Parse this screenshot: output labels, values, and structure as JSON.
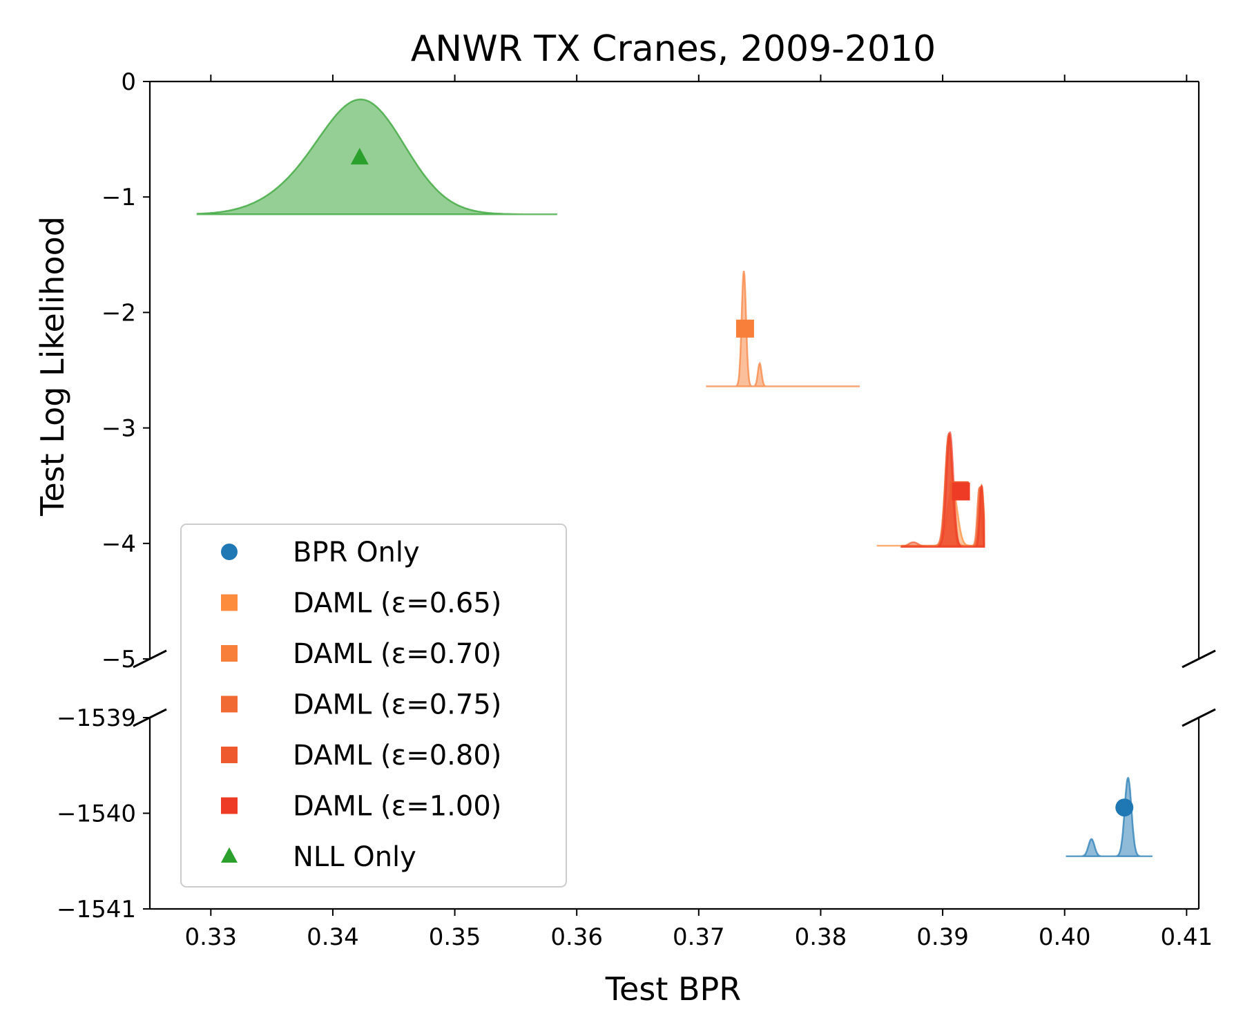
{
  "chart_data": {
    "type": "scatter",
    "title": "ANWR TX Cranes, 2009-2010",
    "xlabel": "Test BPR",
    "ylabel": "Test Log Likelihood",
    "xlim": [
      0.325,
      0.411
    ],
    "x_ticks": [
      {
        "value": 0.33,
        "label": "0.33"
      },
      {
        "value": 0.34,
        "label": "0.34"
      },
      {
        "value": 0.35,
        "label": "0.35"
      },
      {
        "value": 0.36,
        "label": "0.36"
      },
      {
        "value": 0.37,
        "label": "0.37"
      },
      {
        "value": 0.38,
        "label": "0.38"
      },
      {
        "value": 0.39,
        "label": "0.39"
      },
      {
        "value": 0.4,
        "label": "0.40"
      },
      {
        "value": 0.41,
        "label": "0.41"
      }
    ],
    "broken_y_axis": {
      "upper_ylim": [
        -5,
        0
      ],
      "upper_ticks": [
        {
          "value": 0,
          "label": "0"
        },
        {
          "value": -1,
          "label": "−1"
        },
        {
          "value": -2,
          "label": "−2"
        },
        {
          "value": -3,
          "label": "−3"
        },
        {
          "value": -4,
          "label": "−4"
        },
        {
          "value": -5,
          "label": "−5"
        }
      ],
      "lower_ylim": [
        -1541,
        -1539
      ],
      "lower_ticks": [
        {
          "value": -1539,
          "label": "−1539"
        },
        {
          "value": -1540,
          "label": "−1540"
        },
        {
          "value": -1541,
          "label": "−1541"
        }
      ]
    },
    "series": [
      {
        "name": "BPR Only",
        "marker": "circle",
        "color": "#1f77b4",
        "x": 0.4049,
        "y": -1539.94,
        "panel": "lower",
        "density": {
          "baseline": -1540.45,
          "peaks": [
            {
              "x": 0.4052,
              "height": 0.82,
              "width": 0.00028
            },
            {
              "x": 0.4022,
              "height": 0.18,
              "width": 0.00025
            }
          ],
          "xmin": 0.4001,
          "xmax": 0.4072
        }
      },
      {
        "name": "DAML (ε=0.65)",
        "marker": "square",
        "color": "#fd8d3c",
        "x": null,
        "y": null,
        "panel": "upper",
        "density": {
          "baseline": -4.02,
          "peaks": [
            {
              "x": 0.3908,
              "height": 0.5,
              "width": 0.0004
            },
            {
              "x": 0.3932,
              "height": 0.52,
              "width": 0.00018
            }
          ],
          "xmin": 0.3846,
          "xmax": 0.3934
        }
      },
      {
        "name": "DAML (ε=0.70)",
        "marker": "square",
        "color": "#f87f3a",
        "x": 0.3738,
        "y": -2.14,
        "panel": "upper",
        "density": {
          "baseline": -2.64,
          "peaks": [
            {
              "x": 0.3737,
              "height": 1.0,
              "width": 0.00018
            },
            {
              "x": 0.375,
              "height": 0.2,
              "width": 0.00015
            }
          ],
          "xmin": 0.3706,
          "xmax": 0.3832
        }
      },
      {
        "name": "DAML (ε=0.75)",
        "marker": "square",
        "color": "#f26a33",
        "x": 0.3914,
        "y": -3.54,
        "panel": "upper",
        "density": {
          "baseline": -4.02,
          "peaks": [
            {
              "x": 0.3905,
              "height": 0.95,
              "width": 0.0003
            },
            {
              "x": 0.393,
              "height": 0.5,
              "width": 0.00016
            }
          ],
          "xmin": 0.3866,
          "xmax": 0.3934
        }
      },
      {
        "name": "DAML (ε=0.80)",
        "marker": "square",
        "color": "#ee5a2e",
        "x": 0.3913,
        "y": -3.54,
        "panel": "upper",
        "density": {
          "baseline": -4.03,
          "peaks": [
            {
              "x": 0.3905,
              "height": 0.98,
              "width": 0.00028
            },
            {
              "x": 0.3931,
              "height": 0.52,
              "width": 0.00016
            },
            {
              "x": 0.3876,
              "height": 0.04,
              "width": 0.0004
            }
          ],
          "xmin": 0.3866,
          "xmax": 0.3934
        }
      },
      {
        "name": "DAML (ε=1.00)",
        "marker": "square",
        "color": "#ee3b26",
        "x": 0.3915,
        "y": -3.55,
        "panel": "upper",
        "density": {
          "baseline": -4.03,
          "peaks": [
            {
              "x": 0.3906,
              "height": 0.99,
              "width": 0.00028
            },
            {
              "x": 0.3932,
              "height": 0.53,
              "width": 0.00015
            }
          ],
          "xmin": 0.3866,
          "xmax": 0.3934
        }
      },
      {
        "name": "NLL Only",
        "marker": "triangle",
        "color": "#2ca02c",
        "x": 0.3422,
        "y": -0.66,
        "panel": "upper",
        "density": {
          "baseline": -1.15,
          "peaks": [
            {
              "x": 0.3424,
              "height": 0.98,
              "width": 0.0035
            },
            {
              "x": 0.3365,
              "height": 0.1,
              "width": 0.003
            }
          ],
          "xmin": 0.3289,
          "xmax": 0.3584
        }
      }
    ],
    "legend_position": "lower-left"
  }
}
